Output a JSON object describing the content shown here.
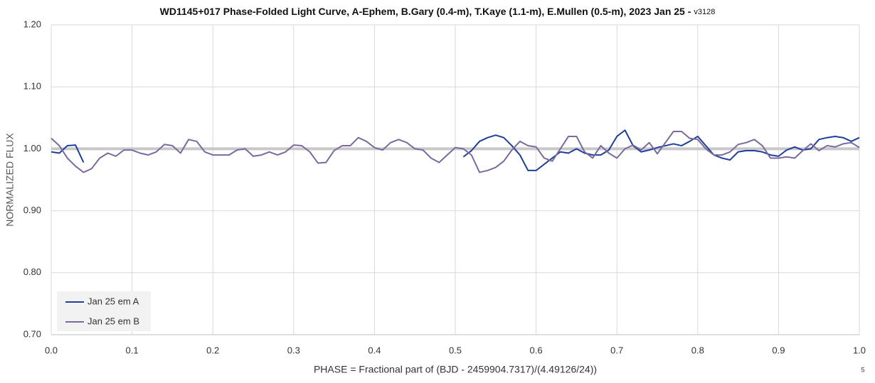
{
  "chart_data": {
    "type": "line",
    "title": "WD1145+017 Phase-Folded Light Curve, A-Ephem, B.Gary (0.4-m), T.Kaye (1.1-m), E.Mullen (0.5-m), 2023 Jan 25 -",
    "subtitle": "v3128",
    "annotations": [
      "5"
    ],
    "x_label": "PHASE = Fractional part of (BJD - 2459904.7317)/(4.49126/24))",
    "y_label": "NORMALIZED FLUX",
    "xlim": [
      0,
      1
    ],
    "ylim": [
      0.7,
      1.2
    ],
    "xticks": [
      {
        "value": 0,
        "label": "0.0"
      },
      0.1,
      0.2,
      0.3,
      0.4,
      0.5,
      0.6,
      0.7,
      0.8,
      0.9,
      {
        "value": 1,
        "label": "1.0"
      }
    ],
    "yticks": [
      {
        "value": 0.7,
        "label": "0.70"
      },
      {
        "value": 0.8,
        "label": "0.80"
      },
      {
        "value": 0.9,
        "label": "0.90"
      },
      {
        "value": 1.0,
        "label": "1.00"
      },
      {
        "value": 1.1,
        "label": "1.10"
      },
      {
        "value": 1.2,
        "label": "1.20"
      }
    ],
    "grid": true,
    "reference_line": 1.0,
    "legend": "lower left",
    "x": [
      0,
      0.01,
      0.02,
      0.03,
      0.04,
      0.05,
      0.06,
      0.07,
      0.08,
      0.09,
      0.1,
      0.11,
      0.12,
      0.13,
      0.14,
      0.15,
      0.16,
      0.17,
      0.18,
      0.19,
      0.2,
      0.21,
      0.22,
      0.23,
      0.24,
      0.25,
      0.26,
      0.27,
      0.28,
      0.29,
      0.3,
      0.31,
      0.32,
      0.33,
      0.34,
      0.35,
      0.36,
      0.37,
      0.38,
      0.39,
      0.4,
      0.41,
      0.42,
      0.43,
      0.44,
      0.45,
      0.46,
      0.47,
      0.48,
      0.49,
      0.5,
      0.51,
      0.52,
      0.53,
      0.54,
      0.55,
      0.56,
      0.57,
      0.58,
      0.59,
      0.6,
      0.61,
      0.62,
      0.63,
      0.64,
      0.65,
      0.66,
      0.67,
      0.68,
      0.69,
      0.7,
      0.71,
      0.72,
      0.73,
      0.74,
      0.75,
      0.76,
      0.77,
      0.78,
      0.79,
      0.8,
      0.81,
      0.82,
      0.83,
      0.84,
      0.85,
      0.86,
      0.87,
      0.88,
      0.89,
      0.9,
      0.91,
      0.92,
      0.93,
      0.94,
      0.95,
      0.96,
      0.97,
      0.98,
      0.99,
      1
    ],
    "series": [
      {
        "name": "Jan 25 em A",
        "color": "#1f3f99",
        "values": [
          0.995,
          0.993,
          1.005,
          1.006,
          0.978,
          null,
          null,
          null,
          null,
          null,
          null,
          null,
          null,
          null,
          null,
          null,
          null,
          null,
          null,
          null,
          null,
          null,
          null,
          null,
          null,
          null,
          null,
          null,
          null,
          null,
          null,
          null,
          null,
          null,
          null,
          null,
          null,
          null,
          null,
          null,
          null,
          null,
          null,
          null,
          null,
          null,
          null,
          null,
          null,
          null,
          null,
          0.987,
          0.997,
          1.012,
          1.018,
          1.022,
          1.018,
          1.005,
          0.99,
          0.965,
          0.965,
          0.975,
          0.985,
          0.995,
          0.993,
          1.0,
          0.993,
          0.99,
          0.99,
          0.998,
          1.02,
          1.03,
          1.005,
          0.995,
          0.998,
          1.002,
          1.005,
          1.008,
          1.005,
          1.012,
          1.02,
          1.005,
          0.99,
          0.985,
          0.982,
          0.995,
          0.997,
          0.997,
          0.995,
          0.99,
          0.988,
          0.998,
          1.003,
          0.998,
          1.0,
          1.015,
          1.018,
          1.02,
          1.018,
          1.012,
          1.018
        ]
      },
      {
        "name": "Jan 25 em B",
        "color": "#7b6a9e",
        "values": [
          1.017,
          1.005,
          0.985,
          0.972,
          0.962,
          0.968,
          0.985,
          0.993,
          0.988,
          0.998,
          0.998,
          0.993,
          0.99,
          0.995,
          1.007,
          1.005,
          0.993,
          1.015,
          1.012,
          0.995,
          0.99,
          0.99,
          0.99,
          0.998,
          1.0,
          0.988,
          0.99,
          0.995,
          0.99,
          0.995,
          1.006,
          1.005,
          0.995,
          0.977,
          0.978,
          0.997,
          1.005,
          1.005,
          1.018,
          1.012,
          1.002,
          0.998,
          1.01,
          1.015,
          1.01,
          1.0,
          0.998,
          0.985,
          0.978,
          0.99,
          1.002,
          1.0,
          0.99,
          0.962,
          0.965,
          0.97,
          0.98,
          0.998,
          1.012,
          1.005,
          1.003,
          0.985,
          0.98,
          1.0,
          1.02,
          1.02,
          0.995,
          0.985,
          1.005,
          0.993,
          0.985,
          1.0,
          1.006,
          0.998,
          1.01,
          0.992,
          1.01,
          1.028,
          1.028,
          1.017,
          1.015,
          1.0,
          0.99,
          0.99,
          0.995,
          1.007,
          1.01,
          1.015,
          1.005,
          0.985,
          0.985,
          0.987,
          0.985,
          0.997,
          1.008,
          0.997,
          1.005,
          1.003,
          1.008,
          1.01,
          1.002
        ]
      }
    ]
  }
}
